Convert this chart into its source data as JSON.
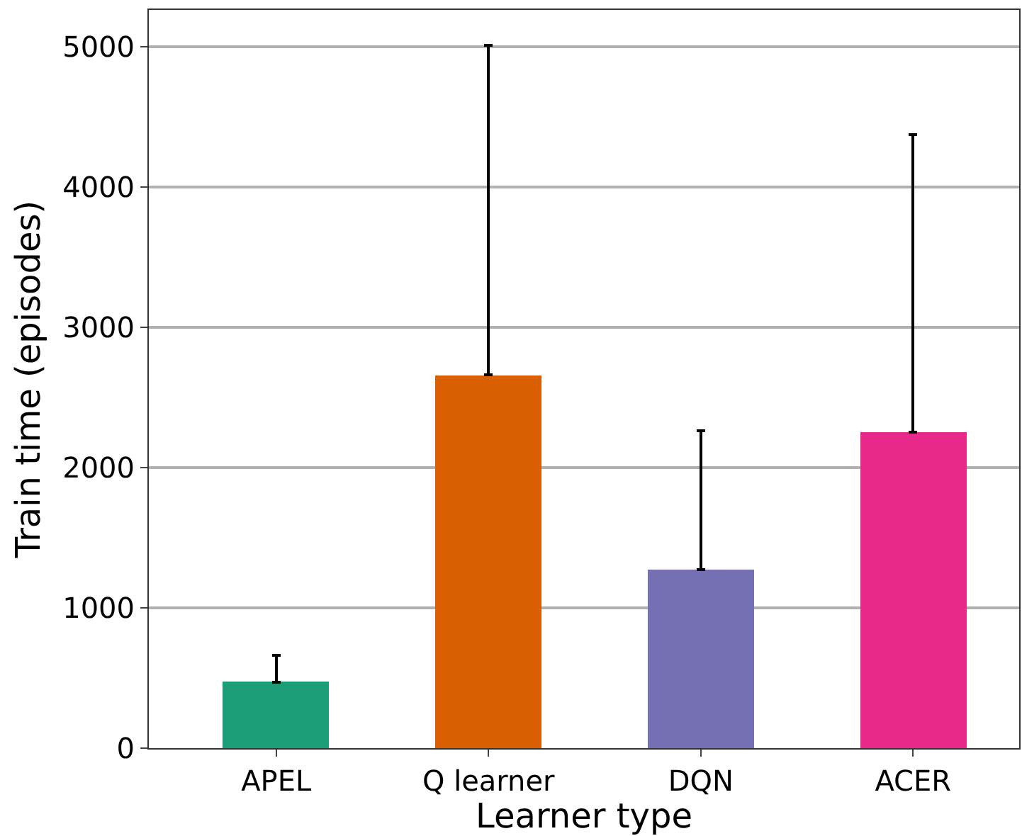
{
  "chart_data": {
    "type": "bar",
    "xlabel": "Learner type",
    "ylabel": "Train time (episodes)",
    "categories": [
      "APEL",
      "Q learner",
      "DQN",
      "ACER"
    ],
    "values": [
      470,
      2660,
      1270,
      2250
    ],
    "colors": [
      "#1b9e77",
      "#d95f02",
      "#7570b3",
      "#e7298a"
    ],
    "errors": [
      [
        470,
        660
      ],
      [
        2660,
        5010
      ],
      [
        1270,
        2260
      ],
      [
        2250,
        4370
      ]
    ],
    "ylim": [
      0,
      5260
    ],
    "yticks": [
      0,
      1000,
      2000,
      3000,
      4000,
      5000
    ],
    "grid": "y"
  }
}
